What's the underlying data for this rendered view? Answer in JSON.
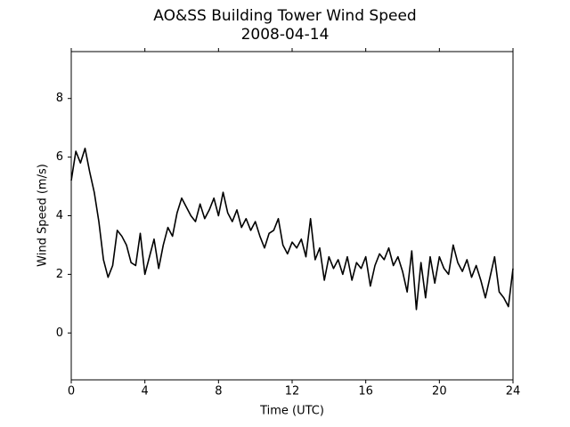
{
  "chart_data": {
    "type": "line",
    "title": "AO&SS Building Tower Wind Speed",
    "subtitle": "2008-04-14",
    "x_label": "Time (UTC)",
    "y_label": "Wind Speed (m/s)",
    "color": "#000000",
    "xlim": [
      0,
      24
    ],
    "xticks": [
      0,
      4,
      8,
      12,
      16,
      20,
      24
    ],
    "ylim": [
      -1.6,
      9.6
    ],
    "yticks": [
      0,
      2,
      4,
      6,
      8
    ],
    "x": [
      0,
      0.25,
      0.5,
      0.75,
      1,
      1.25,
      1.5,
      1.75,
      2,
      2.25,
      2.5,
      2.75,
      3,
      3.25,
      3.5,
      3.75,
      4,
      4.25,
      4.5,
      4.75,
      5,
      5.25,
      5.5,
      5.75,
      6,
      6.25,
      6.5,
      6.75,
      7,
      7.25,
      7.5,
      7.75,
      8,
      8.25,
      8.5,
      8.75,
      9,
      9.25,
      9.5,
      9.75,
      10,
      10.25,
      10.5,
      10.75,
      11,
      11.25,
      11.5,
      11.75,
      12,
      12.25,
      12.5,
      12.75,
      13,
      13.25,
      13.5,
      13.75,
      14,
      14.25,
      14.5,
      14.75,
      15,
      15.25,
      15.5,
      15.75,
      16,
      16.25,
      16.5,
      16.75,
      17,
      17.25,
      17.5,
      17.75,
      18,
      18.25,
      18.5,
      18.75,
      19,
      19.25,
      19.5,
      19.75,
      20,
      20.25,
      20.5,
      20.75,
      21,
      21.25,
      21.5,
      21.75,
      22,
      22.25,
      22.5,
      22.75,
      23,
      23.25,
      23.5,
      23.75,
      24
    ],
    "values": [
      5.2,
      6.2,
      5.8,
      6.3,
      5.5,
      4.8,
      3.8,
      2.5,
      1.9,
      2.3,
      3.5,
      3.3,
      3.0,
      2.4,
      2.3,
      3.4,
      2.0,
      2.6,
      3.2,
      2.2,
      3.0,
      3.6,
      3.3,
      4.1,
      4.6,
      4.3,
      4.0,
      3.8,
      4.4,
      3.9,
      4.2,
      4.6,
      4.0,
      4.8,
      4.1,
      3.8,
      4.2,
      3.6,
      3.9,
      3.5,
      3.8,
      3.3,
      2.9,
      3.4,
      3.5,
      3.9,
      3.0,
      2.7,
      3.1,
      2.9,
      3.2,
      2.6,
      3.9,
      2.5,
      2.9,
      1.8,
      2.6,
      2.2,
      2.5,
      2.0,
      2.6,
      1.8,
      2.4,
      2.2,
      2.6,
      1.6,
      2.3,
      2.7,
      2.5,
      2.9,
      2.3,
      2.6,
      2.1,
      1.4,
      2.8,
      0.8,
      2.4,
      1.2,
      2.6,
      1.7,
      2.6,
      2.2,
      2.0,
      3.0,
      2.4,
      2.1,
      2.5,
      1.9,
      2.3,
      1.8,
      1.2,
      1.9,
      2.6,
      1.4,
      1.2,
      0.9,
      2.2
    ]
  }
}
